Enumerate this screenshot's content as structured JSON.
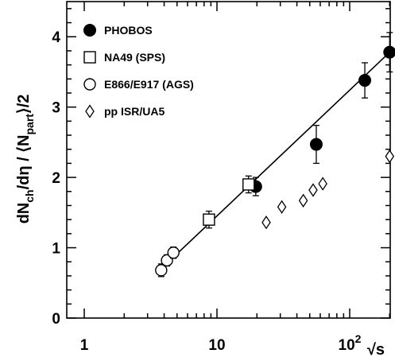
{
  "chart_data": {
    "type": "scatter",
    "x_scale": "log",
    "xlim": [
      1,
      250
    ],
    "ylim": [
      0,
      4.5
    ],
    "grid": false,
    "legend_position": "top-left",
    "x_ticks": [
      {
        "value": 1,
        "label": "1"
      },
      {
        "value": 10,
        "label": "10"
      },
      {
        "value": 100,
        "label": "10",
        "sup": "2"
      }
    ],
    "x_axis_label": "√s",
    "y_ticks": [
      0,
      1,
      2,
      3,
      4
    ],
    "y_axis_label": {
      "parts": [
        "dN",
        "ch",
        "/dη / ⟨N",
        "part",
        "⟩/2"
      ]
    },
    "series": [
      {
        "name": "PHOBOS",
        "marker": "filled-circle",
        "points": [
          {
            "x": 19.6,
            "y": 1.87,
            "err": 0.13
          },
          {
            "x": 56,
            "y": 2.47,
            "err": 0.27
          },
          {
            "x": 130,
            "y": 3.38,
            "err": 0.25
          },
          {
            "x": 200,
            "y": 3.78,
            "err": 0.28
          }
        ]
      },
      {
        "name": "NA49 (SPS)",
        "marker": "open-square",
        "points": [
          {
            "x": 8.7,
            "y": 1.4,
            "err": 0.12
          },
          {
            "x": 17.3,
            "y": 1.9,
            "err": 0.12
          }
        ]
      },
      {
        "name": "E866/E917 (AGS)",
        "marker": "open-circle",
        "points": [
          {
            "x": 3.8,
            "y": 0.68,
            "err": 0.09
          },
          {
            "x": 4.2,
            "y": 0.82,
            "err": 0.08
          },
          {
            "x": 4.7,
            "y": 0.93,
            "err": 0.08
          }
        ]
      },
      {
        "name": "pp ISR/UA5",
        "marker": "open-diamond",
        "points": [
          {
            "x": 23.5,
            "y": 1.36
          },
          {
            "x": 30.8,
            "y": 1.58
          },
          {
            "x": 44.7,
            "y": 1.67
          },
          {
            "x": 53,
            "y": 1.82
          },
          {
            "x": 62.7,
            "y": 1.91
          },
          {
            "x": 200,
            "y": 2.3
          }
        ]
      }
    ],
    "fit_line": {
      "x": [
        3.8,
        200
      ],
      "y": [
        0.7,
        3.78
      ]
    }
  }
}
